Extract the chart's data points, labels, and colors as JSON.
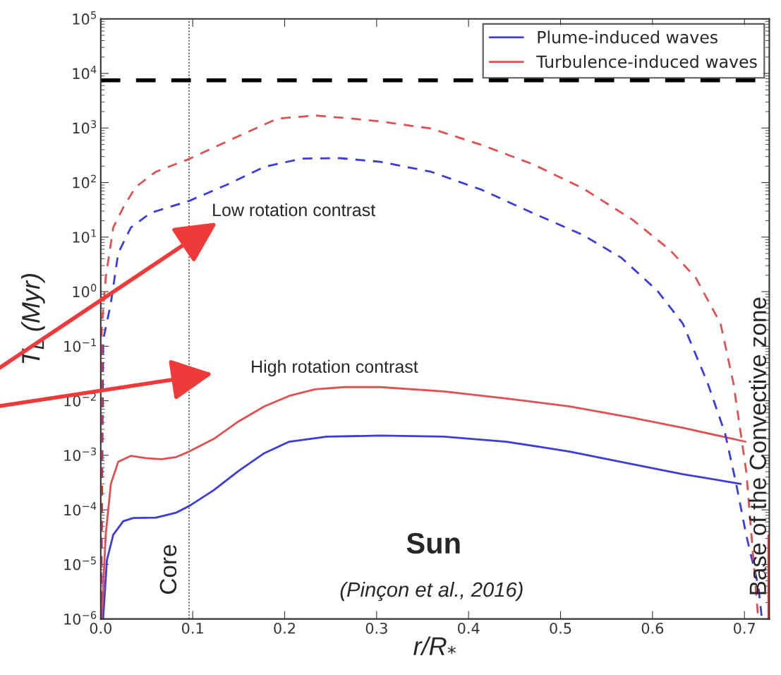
{
  "chart_data": {
    "type": "line",
    "xlabel": "r/R$_{*}$",
    "ylabel": "T$_{L}$ (Myr)",
    "xlim": [
      0,
      0.727
    ],
    "xticks": [
      {
        "value": 0,
        "label": "0.0"
      },
      0.1,
      0.2,
      0.3,
      0.4,
      0.5,
      0.6,
      0.7
    ],
    "log": "y",
    "ylim": [
      1e-06,
      100000
    ],
    "yticks": [
      {
        "value": 1e-06,
        "label": "10$^{−6}$"
      },
      {
        "value": 1e-05,
        "label": "10$^{−5}$"
      },
      {
        "value": 0.0001,
        "label": "10$^{−4}$"
      },
      {
        "value": 0.001,
        "label": "10$^{−3}$"
      },
      {
        "value": 0.01,
        "label": "10$^{−2}$"
      },
      {
        "value": 0.1,
        "label": "10$^{−1}$"
      },
      {
        "value": 1,
        "label": "10$^{0}$"
      },
      {
        "value": 10,
        "label": "10$^{1}$"
      },
      {
        "value": 100,
        "label": "10$^{2}$"
      },
      {
        "value": 1000,
        "label": "10$^{3}$"
      },
      {
        "value": 10000,
        "label": "10$^{4}$"
      },
      {
        "value": 100000,
        "label": "10$^{5}$"
      }
    ],
    "grid": false,
    "legend": "top right",
    "series": [
      {
        "name": "Plume-induced waves",
        "color": "#3c3cdc",
        "line_style": "solid",
        "x": [
          0.0026,
          0.0067,
          0.0136,
          0.0245,
          0.0355,
          0.06,
          0.082,
          0.096,
          0.123,
          0.15,
          0.178,
          0.205,
          0.246,
          0.304,
          0.373,
          0.441,
          0.51,
          0.578,
          0.633,
          0.696
        ],
        "values": [
          1e-06,
          1.2e-05,
          3.5e-05,
          6.2e-05,
          7.1e-05,
          7.2e-05,
          8.9e-05,
          0.000117,
          0.00023,
          0.00052,
          0.0011,
          0.00178,
          0.0022,
          0.0023,
          0.0022,
          0.00178,
          0.00117,
          0.00069,
          0.00045,
          0.0003
        ]
      },
      {
        "name": "Turbulence-induced waves",
        "color": "#e05050",
        "line_style": "solid",
        "x": [
          0.001,
          0.0054,
          0.011,
          0.019,
          0.033,
          0.049,
          0.066,
          0.082,
          0.096,
          0.123,
          0.15,
          0.178,
          0.205,
          0.233,
          0.265,
          0.304,
          0.373,
          0.441,
          0.51,
          0.578,
          0.633,
          0.701
        ],
        "values": [
          1e-06,
          3.5e-05,
          0.0003,
          0.00076,
          0.00098,
          0.00089,
          0.00085,
          0.00093,
          0.00117,
          0.002,
          0.0042,
          0.0079,
          0.0123,
          0.0162,
          0.0178,
          0.0178,
          0.0148,
          0.011,
          0.0079,
          0.0049,
          0.0032,
          0.00178
        ]
      },
      {
        "color": "#3c3cdc",
        "line_style": "dashed",
        "x": [
          0.0005,
          0.0026,
          0.0109,
          0.019,
          0.0328,
          0.0546,
          0.096,
          0.137,
          0.178,
          0.219,
          0.26,
          0.304,
          0.359,
          0.414,
          0.469,
          0.524,
          0.566,
          0.605,
          0.633,
          0.66,
          0.679,
          0.691,
          0.702,
          0.715,
          0.719
        ],
        "values": [
          1e-06,
          0.13,
          0.6,
          5.1,
          15,
          28,
          46,
          91,
          195,
          275,
          280,
          240,
          158,
          74,
          28,
          11,
          4.2,
          1.05,
          0.26,
          0.021,
          0.0025,
          0.0003,
          3.4e-05,
          4.1e-06,
          1e-06
        ]
      },
      {
        "color": "#e05050",
        "line_style": "dashed",
        "x": [
          0.0003,
          0.001,
          0.0054,
          0.0136,
          0.0245,
          0.038,
          0.06,
          0.096,
          0.123,
          0.15,
          0.192,
          0.233,
          0.274,
          0.304,
          0.359,
          0.414,
          0.469,
          0.524,
          0.578,
          0.619,
          0.647,
          0.674,
          0.688,
          0.696,
          0.702,
          0.715
        ],
        "values": [
          1e-06,
          0.21,
          1.8,
          15,
          35,
          83,
          158,
          270,
          440,
          710,
          1480,
          1700,
          1480,
          1320,
          980,
          490,
          220,
          79,
          21,
          5.8,
          1.8,
          0.26,
          0.021,
          0.0025,
          0.0005,
          1e-06
        ]
      },
      {
        "color": "#e05050",
        "line_style": "solid",
        "x": [
          0.726,
          0.726
        ],
        "values": [
          3.4e-05,
          1e-06
        ]
      }
    ],
    "ref_lines": [
      {
        "axis": "y",
        "value": 7500,
        "color": "#000000",
        "line_style": "dashed"
      },
      {
        "axis": "x",
        "value": 0.096,
        "label": "Core",
        "color": "#000000",
        "line_style": "dotted"
      }
    ],
    "annotations": [
      "Low rotation contrast",
      "High rotation contrast",
      "Sun",
      "(Pinçon et al., 2016)",
      "Base of the Convective zone"
    ]
  }
}
